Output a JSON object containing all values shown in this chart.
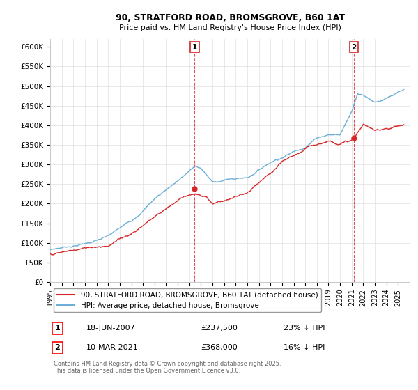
{
  "title": "90, STRATFORD ROAD, BROMSGROVE, B60 1AT",
  "subtitle": "Price paid vs. HM Land Registry's House Price Index (HPI)",
  "ylim": [
    0,
    620000
  ],
  "yticks": [
    0,
    50000,
    100000,
    150000,
    200000,
    250000,
    300000,
    350000,
    400000,
    450000,
    500000,
    550000,
    600000
  ],
  "ytick_labels": [
    "£0",
    "£50K",
    "£100K",
    "£150K",
    "£200K",
    "£250K",
    "£300K",
    "£350K",
    "£400K",
    "£450K",
    "£500K",
    "£550K",
    "£600K"
  ],
  "xlim_start": 1995.0,
  "xlim_end": 2026.0,
  "xticks": [
    1995,
    1996,
    1997,
    1998,
    1999,
    2000,
    2001,
    2002,
    2003,
    2004,
    2005,
    2006,
    2007,
    2008,
    2009,
    2010,
    2011,
    2012,
    2013,
    2014,
    2015,
    2016,
    2017,
    2018,
    2019,
    2020,
    2021,
    2022,
    2023,
    2024,
    2025
  ],
  "hpi_color": "#6baed6",
  "price_color": "#d62728",
  "vline_color": "#d62728",
  "marker1_x": 2007.46,
  "marker1_y": 237500,
  "marker2_x": 2021.19,
  "marker2_y": 368000,
  "marker1_label": "1",
  "marker2_label": "2",
  "legend_price_label": "90, STRATFORD ROAD, BROMSGROVE, B60 1AT (detached house)",
  "legend_hpi_label": "HPI: Average price, detached house, Bromsgrove",
  "note1_label": "1",
  "note1_date": "18-JUN-2007",
  "note1_price": "£237,500",
  "note1_hpi": "23% ↓ HPI",
  "note2_label": "2",
  "note2_date": "10-MAR-2021",
  "note2_price": "£368,000",
  "note2_hpi": "16% ↓ HPI",
  "copyright": "Contains HM Land Registry data © Crown copyright and database right 2025.\nThis data is licensed under the Open Government Licence v3.0.",
  "background_color": "#ffffff",
  "grid_color": "#e0e0e0",
  "hpi_anchors_x": [
    1995,
    1996,
    1998,
    2000,
    2002,
    2004,
    2007.5,
    2008,
    2009,
    2010,
    2012,
    2014,
    2016,
    2017,
    2018,
    2019,
    2020,
    2021,
    2021.5,
    2022,
    2023,
    2024,
    2025.5
  ],
  "hpi_anchors_y": [
    82000,
    88000,
    100000,
    118000,
    155000,
    215000,
    300000,
    295000,
    258000,
    265000,
    272000,
    315000,
    345000,
    360000,
    385000,
    395000,
    395000,
    455000,
    505000,
    500000,
    485000,
    495000,
    510000
  ],
  "price_anchors_x": [
    1995,
    1996,
    1998,
    2000,
    2002,
    2004,
    2006.5,
    2007.0,
    2007.46,
    2008.5,
    2009,
    2010,
    2011,
    2012,
    2013,
    2014,
    2015,
    2016,
    2017,
    2018,
    2019,
    2020,
    2021.0,
    2021.19,
    2022,
    2023,
    2024,
    2025.5
  ],
  "price_anchors_y": [
    72000,
    76000,
    85000,
    98000,
    130000,
    175000,
    230000,
    237000,
    237500,
    225000,
    212000,
    220000,
    230000,
    238000,
    260000,
    280000,
    305000,
    320000,
    335000,
    350000,
    360000,
    358000,
    365000,
    368000,
    405000,
    385000,
    395000,
    405000
  ]
}
